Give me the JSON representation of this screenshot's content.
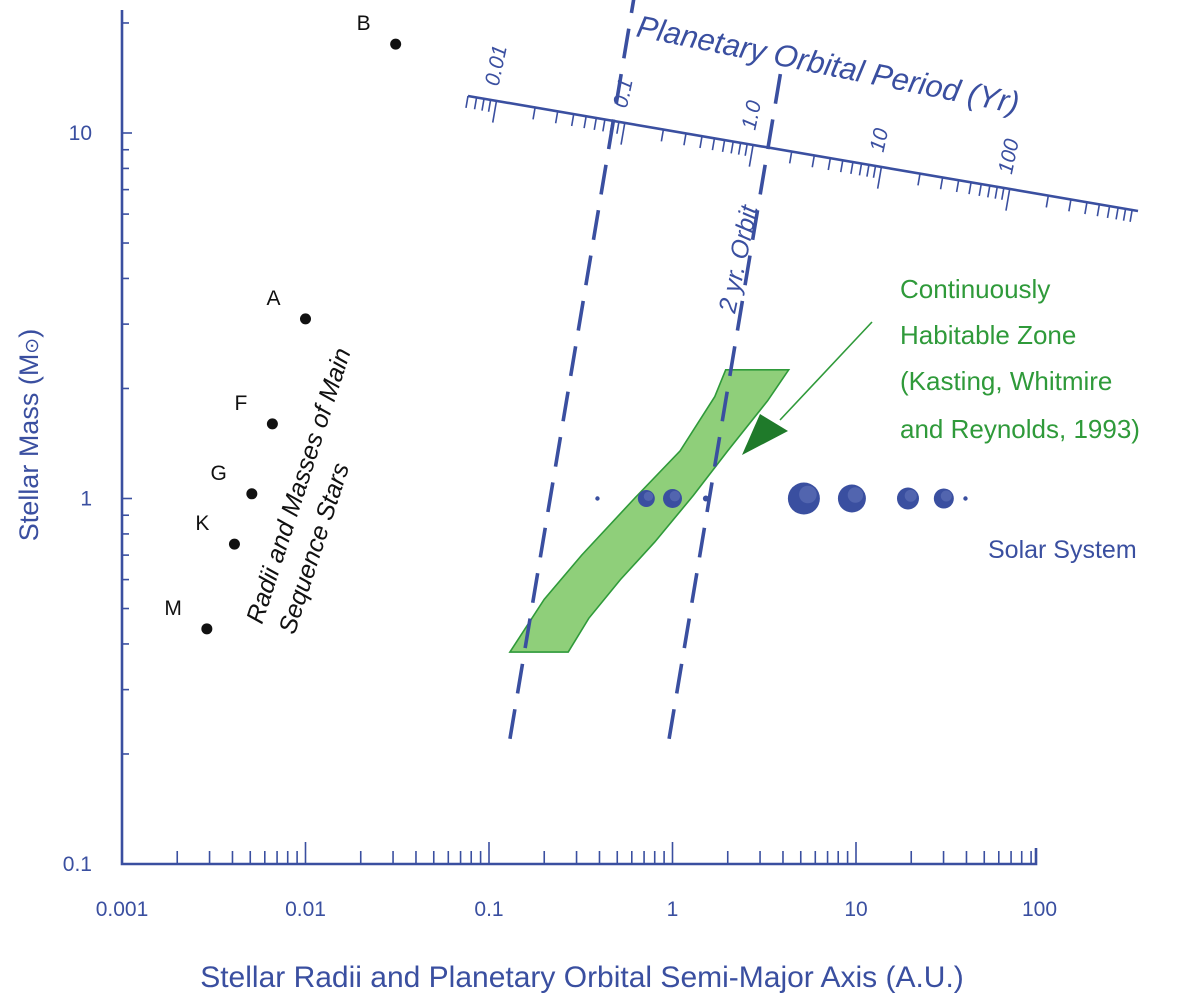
{
  "chart_data": {
    "type": "scatter",
    "xlabel": "Stellar Radii and Planetary Orbital Semi-Major Axis (A.U.)",
    "ylabel_main": "Stellar Mass (M",
    "ylabel_sym": "⊙",
    "ylabel_close": ")",
    "x_scale": "log",
    "y_scale": "log",
    "xlim": [
      0.001,
      100
    ],
    "ylim": [
      0.1,
      30
    ],
    "x_tick_labels": [
      "0.001",
      "0.01",
      "0.1",
      "1",
      "10",
      "100"
    ],
    "x_tick_values": [
      0.001,
      0.01,
      0.1,
      1,
      10,
      100
    ],
    "y_tick_labels": [
      "0.1",
      "1",
      "10"
    ],
    "y_tick_values": [
      0.1,
      1,
      10
    ],
    "main_sequence_label_1": "Radii and Masses of Main",
    "main_sequence_label_2": "Sequence Stars",
    "main_sequence_stars": [
      {
        "label": "B",
        "radius_au": 0.031,
        "mass": 17.5
      },
      {
        "label": "A",
        "radius_au": 0.01,
        "mass": 3.1
      },
      {
        "label": "F",
        "radius_au": 0.0066,
        "mass": 1.6
      },
      {
        "label": "G",
        "radius_au": 0.0051,
        "mass": 1.03
      },
      {
        "label": "K",
        "radius_au": 0.0041,
        "mass": 0.75
      },
      {
        "label": "M",
        "radius_au": 0.0029,
        "mass": 0.44
      }
    ],
    "period_axis": {
      "title": "Planetary Orbital Period (Yr)",
      "tick_labels": [
        "0.01",
        "0.1",
        "1.0",
        "10",
        "100"
      ],
      "tick_values": [
        0.01,
        0.1,
        1,
        10,
        100
      ]
    },
    "constant_period_lines": [
      {
        "period_yr": 0.1,
        "label": ""
      },
      {
        "period_yr": 2,
        "label": "2 yr. Orbit"
      }
    ],
    "habitable_zone": {
      "label_lines": [
        "Continuously",
        "Habitable Zone",
        "(Kasting, Whitmire",
        "and Reynolds, 1993)"
      ],
      "color": "#8fcf7a",
      "outline": [
        [
          0.13,
          0.38
        ],
        [
          0.27,
          0.38
        ],
        [
          0.35,
          0.47
        ],
        [
          0.52,
          0.6
        ],
        [
          0.8,
          0.76
        ],
        [
          1.3,
          1.02
        ],
        [
          2.0,
          1.35
        ],
        [
          3.3,
          1.85
        ],
        [
          4.3,
          2.25
        ],
        [
          1.95,
          2.25
        ],
        [
          1.7,
          1.9
        ],
        [
          1.1,
          1.35
        ],
        [
          0.62,
          1.0
        ],
        [
          0.32,
          0.7
        ],
        [
          0.2,
          0.53
        ]
      ]
    },
    "solar_system": {
      "label": "Solar System",
      "mass": 1.0,
      "planets": [
        {
          "a_au": 0.39,
          "size": 2.2
        },
        {
          "a_au": 0.72,
          "size": 8.5
        },
        {
          "a_au": 1.0,
          "size": 9.5
        },
        {
          "a_au": 1.52,
          "size": 3.0
        },
        {
          "a_au": 5.2,
          "size": 16
        },
        {
          "a_au": 9.5,
          "size": 14
        },
        {
          "a_au": 19.2,
          "size": 11
        },
        {
          "a_au": 30.1,
          "size": 10
        },
        {
          "a_au": 39.5,
          "size": 2.2
        }
      ]
    },
    "colors": {
      "axis": "#3a4fa0",
      "hz_fill": "#8fcf7a",
      "hz_text": "#2f9a3a",
      "stars": "#111111"
    }
  }
}
